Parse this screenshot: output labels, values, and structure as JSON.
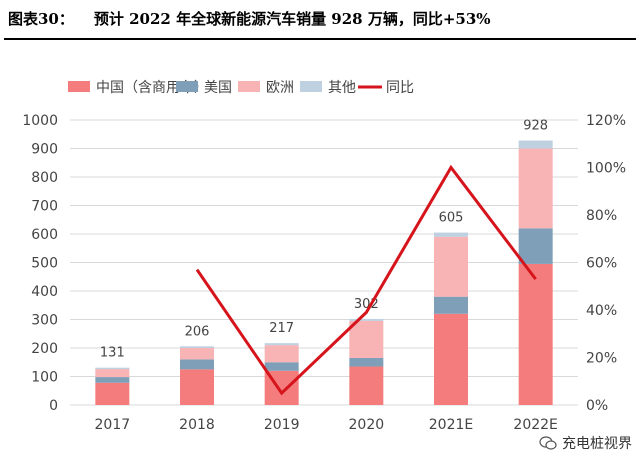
{
  "title": {
    "figure_no": "图表30：",
    "text": "预计 2022 年全球新能源汽车销量 928 万辆，同比+53%"
  },
  "watermark": {
    "text": "充电桩视界",
    "icon": "wechat-icon"
  },
  "colors": {
    "china": "#f47c7c",
    "usa": "#7f9fb8",
    "europe": "#f8b3b5",
    "other": "#bfd0e0",
    "yoy": "#d6141c"
  },
  "chart_data": {
    "type": "bar",
    "stacked": true,
    "title": "",
    "categories": [
      "2017",
      "2018",
      "2019",
      "2020",
      "2021E",
      "2022E"
    ],
    "series": [
      {
        "name": "中国（含商用车）",
        "key": "china",
        "values": [
          78,
          125,
          120,
          135,
          320,
          495
        ]
      },
      {
        "name": "美国",
        "key": "usa",
        "values": [
          20,
          35,
          30,
          30,
          60,
          125
        ]
      },
      {
        "name": "欧洲",
        "key": "europe",
        "values": [
          28,
          40,
          60,
          130,
          210,
          280
        ]
      },
      {
        "name": "其他",
        "key": "other",
        "values": [
          5,
          6,
          7,
          7,
          15,
          28
        ]
      }
    ],
    "totals": [
      "131",
      "206",
      "217",
      "302",
      "605",
      "928"
    ],
    "line_series": {
      "name": "同比",
      "key": "yoy",
      "x": [
        "2018",
        "2019",
        "2020",
        "2021E",
        "2022E"
      ],
      "values": [
        0.57,
        0.05,
        0.39,
        1.0,
        0.53
      ]
    },
    "ylim": [
      0,
      1000
    ],
    "yticks": [
      "0",
      "100",
      "200",
      "300",
      "400",
      "500",
      "600",
      "700",
      "800",
      "900",
      "1000"
    ],
    "y2lim": [
      0,
      1.2
    ],
    "y2ticks": [
      "0%",
      "20%",
      "40%",
      "60%",
      "80%",
      "100%",
      "120%"
    ],
    "grid": true,
    "legend_position": "top"
  }
}
